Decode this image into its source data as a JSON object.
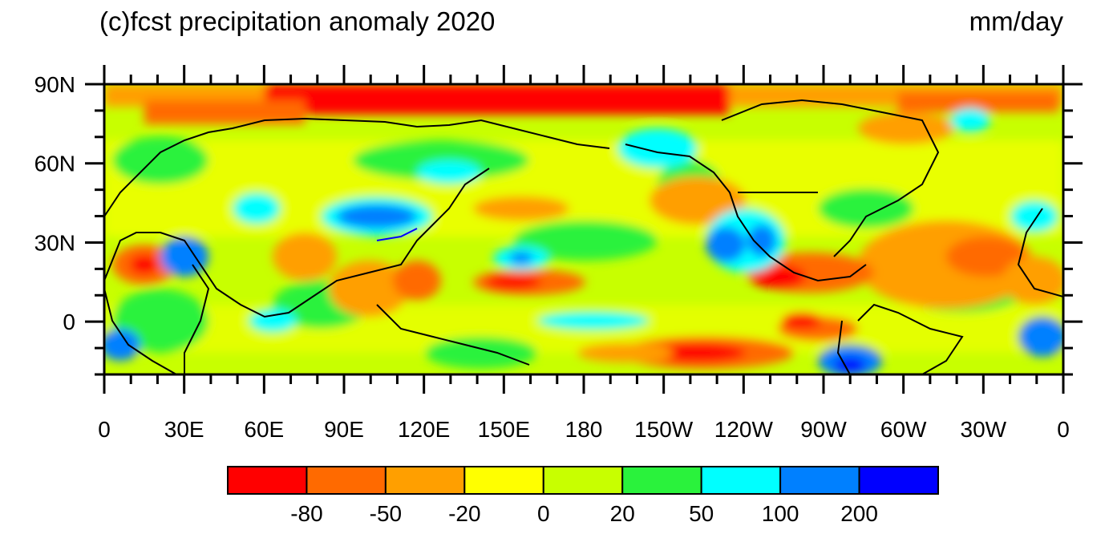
{
  "title_left": "(c)fcst precipitation anomaly 2020",
  "title_right": "mm/day",
  "lat_labels": [
    "90N",
    "60N",
    "30N",
    "0"
  ],
  "lon_labels": [
    "0",
    "30E",
    "60E",
    "90E",
    "120E",
    "150E",
    "180",
    "150W",
    "120W",
    "90W",
    "60W",
    "30W",
    "0"
  ],
  "colorbar": {
    "colors": [
      "#ff0000",
      "#ff6a00",
      "#ff9f00",
      "#ffff00",
      "#c8ff00",
      "#2af23c",
      "#00ffff",
      "#0080ff",
      "#0000ff"
    ],
    "labels": [
      "-80",
      "-50",
      "-20",
      "0",
      "20",
      "50",
      "100",
      "200"
    ]
  },
  "map": {
    "projection": "cylindrical equidistant",
    "lat_range": [
      -20,
      90
    ],
    "lon_range": [
      0,
      360
    ],
    "field": "precipitation anomaly"
  }
}
